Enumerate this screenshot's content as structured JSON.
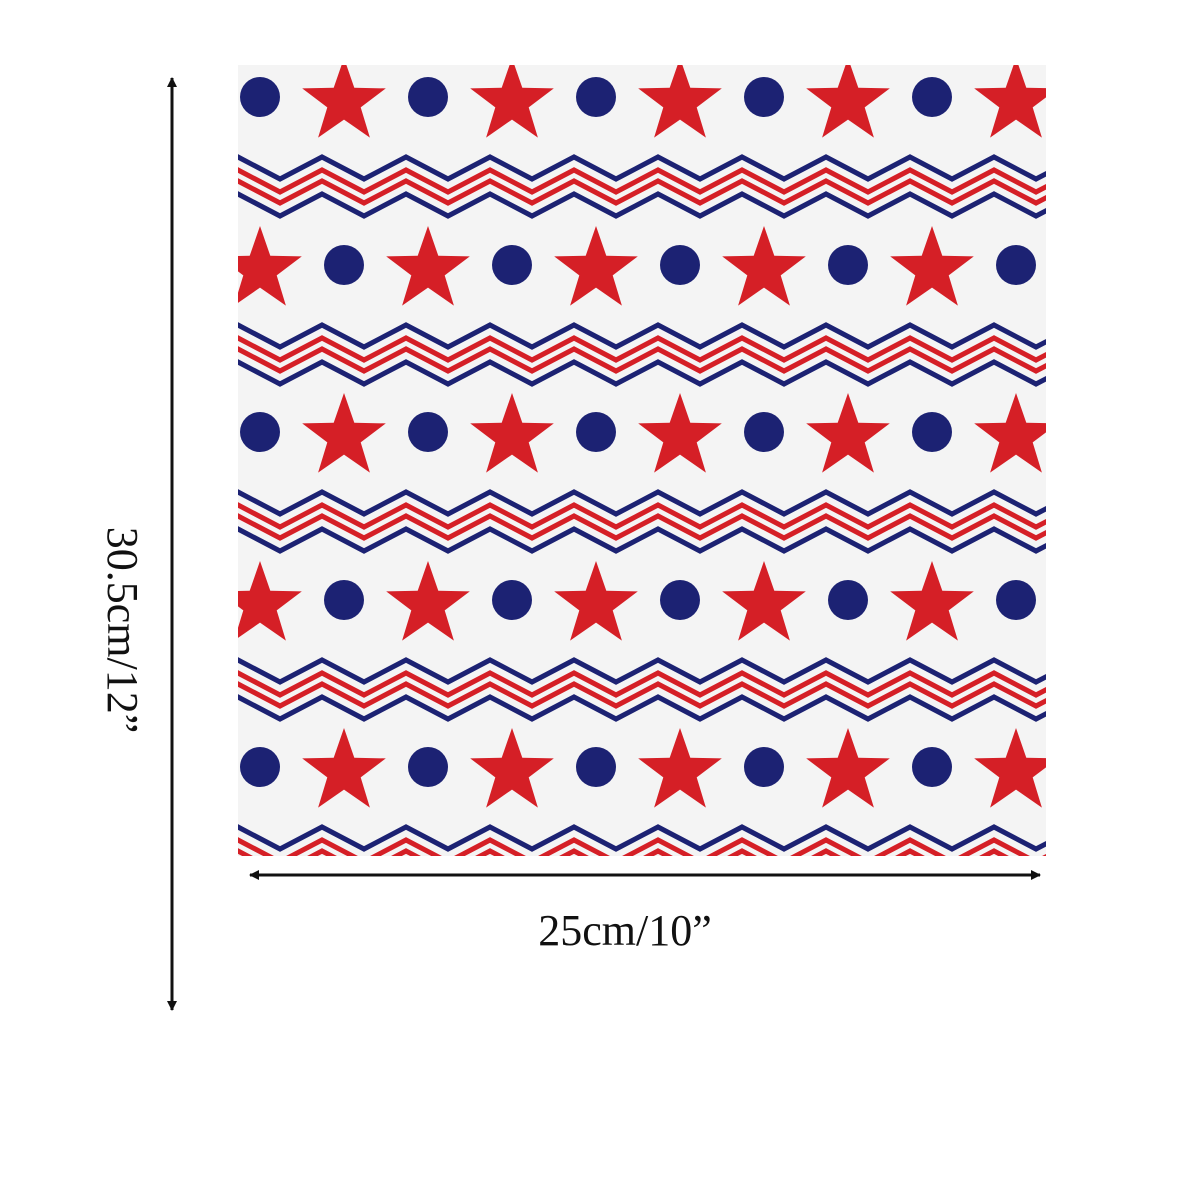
{
  "dimensions": {
    "height_label": "30.5cm/12”",
    "width_label": "25cm/10”"
  }
}
